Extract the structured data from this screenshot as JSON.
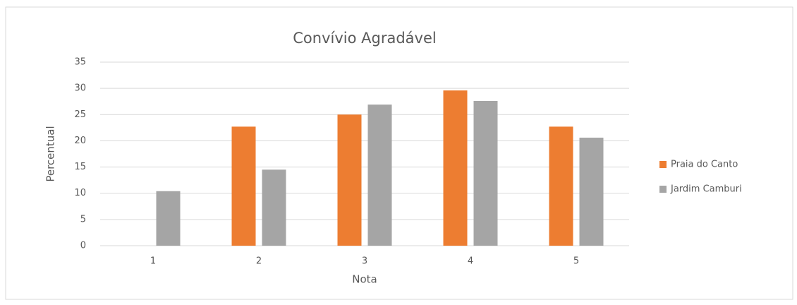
{
  "chart_data": {
    "type": "bar",
    "title": "Convívio Agradável",
    "x_label": "Nota",
    "y_label": "Percentual",
    "categories": [
      "1",
      "2",
      "3",
      "4",
      "5"
    ],
    "series": [
      {
        "name": "Praia do Canto",
        "color": "#ed7d31",
        "values": [
          0,
          22.7,
          25.0,
          29.6,
          22.7
        ]
      },
      {
        "name": "Jardim Camburi",
        "color": "#a5a5a5",
        "values": [
          10.4,
          14.5,
          26.9,
          27.6,
          20.6
        ]
      }
    ],
    "ylim": [
      0,
      35
    ],
    "yticks": [
      0,
      5,
      10,
      15,
      20,
      25,
      30,
      35
    ],
    "grid": true,
    "legend": "right"
  }
}
